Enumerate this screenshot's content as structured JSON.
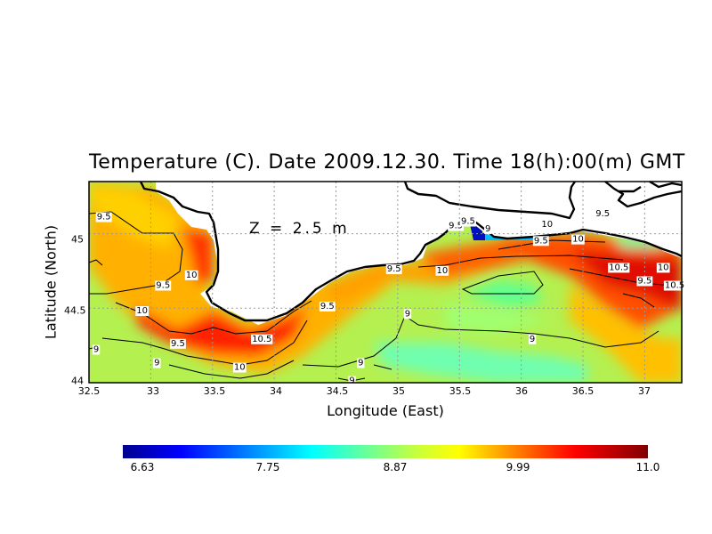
{
  "chart_data": {
    "type": "heatmap",
    "title": "Temperature (C). Date 2009.12.30. Time 18(h):00(m) GMT",
    "annotation": "Z = 2.5 m",
    "xlabel": "Longitude (East)",
    "ylabel": "Latitude (North)",
    "xlim": [
      32.5,
      37.3
    ],
    "ylim": [
      44.0,
      45.35
    ],
    "xticks": [
      "32.5",
      "33",
      "33.5",
      "34",
      "34.5",
      "35",
      "35.5",
      "36",
      "36.5",
      "37"
    ],
    "yticks": [
      "44",
      "44.5",
      "45"
    ],
    "grid": true,
    "colorbar": {
      "min": 6.63,
      "max": 11.0,
      "tick_labels": [
        "6.63",
        "7.75",
        "8.87",
        "9.99",
        "11.0"
      ],
      "colormap": "jet"
    },
    "contour_labels": [
      {
        "text": "9.5",
        "lon": 32.62,
        "lat": 45.12
      },
      {
        "text": "10",
        "lon": 33.33,
        "lat": 44.73
      },
      {
        "text": "9.5",
        "lon": 33.1,
        "lat": 44.66
      },
      {
        "text": "10",
        "lon": 32.93,
        "lat": 44.49
      },
      {
        "text": "9.5",
        "lon": 33.22,
        "lat": 44.27
      },
      {
        "text": "9",
        "lon": 33.05,
        "lat": 44.14
      },
      {
        "text": "9",
        "lon": 32.55,
        "lat": 44.23
      },
      {
        "text": "10.5",
        "lon": 33.9,
        "lat": 44.3
      },
      {
        "text": "10",
        "lon": 33.72,
        "lat": 44.11
      },
      {
        "text": "9.5",
        "lon": 34.43,
        "lat": 44.52
      },
      {
        "text": "9.5",
        "lon": 34.97,
        "lat": 44.77
      },
      {
        "text": "9",
        "lon": 35.08,
        "lat": 44.47
      },
      {
        "text": "9",
        "lon": 34.7,
        "lat": 44.14
      },
      {
        "text": "10",
        "lon": 35.36,
        "lat": 44.76
      },
      {
        "text": "9.5",
        "lon": 35.47,
        "lat": 45.06
      },
      {
        "text": "9.5",
        "lon": 35.57,
        "lat": 45.09
      },
      {
        "text": "9",
        "lon": 35.73,
        "lat": 45.04
      },
      {
        "text": "10",
        "lon": 36.21,
        "lat": 45.07
      },
      {
        "text": "9.5",
        "lon": 36.66,
        "lat": 45.14
      },
      {
        "text": "9.5",
        "lon": 36.16,
        "lat": 44.96
      },
      {
        "text": "10",
        "lon": 36.46,
        "lat": 44.97
      },
      {
        "text": "9",
        "lon": 36.09,
        "lat": 44.3
      },
      {
        "text": "10.5",
        "lon": 36.79,
        "lat": 44.78
      },
      {
        "text": "10",
        "lon": 37.15,
        "lat": 44.78
      },
      {
        "text": "9.5",
        "lon": 37.0,
        "lat": 44.69
      },
      {
        "text": "10.5",
        "lon": 37.27,
        "lat": 44.66
      },
      {
        "text": "9",
        "lon": 34.63,
        "lat": 44.02
      }
    ]
  }
}
